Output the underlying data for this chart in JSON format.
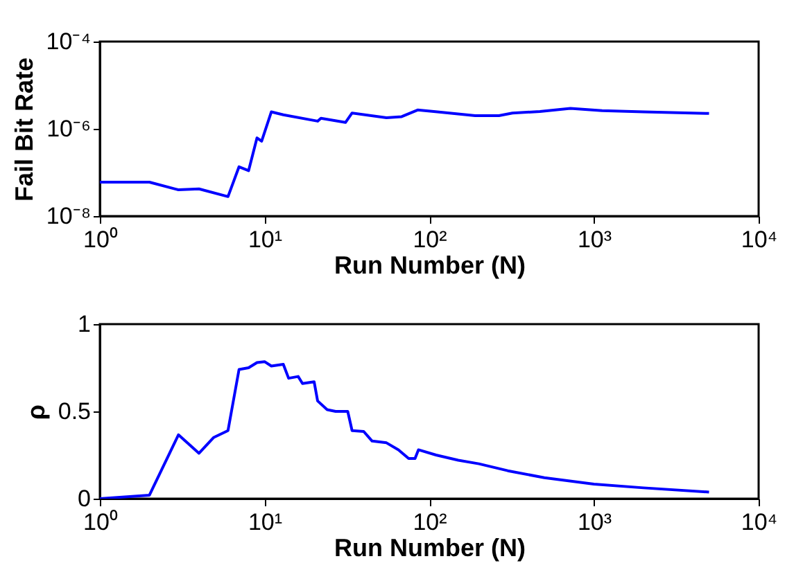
{
  "chart_data": [
    {
      "type": "line",
      "xlabel": "Run Number (N)",
      "ylabel": "Fail Bit Rate",
      "log": "xy",
      "grid": false,
      "marker": "none",
      "line_style": "solid",
      "xlim": [
        1,
        10000
      ],
      "xticks": [
        {
          "value": 1,
          "label": "10⁰"
        },
        {
          "value": 10,
          "label": "10¹"
        },
        {
          "value": 100,
          "label": "10²"
        },
        {
          "value": 1000,
          "label": "10³"
        },
        {
          "value": 10000,
          "label": "10⁴"
        }
      ],
      "ylim": [
        1e-08,
        0.0001
      ],
      "yticks": [
        {
          "value": 1e-08,
          "label": "10⁻⁸"
        },
        {
          "value": 1e-06,
          "label": "10⁻⁶"
        },
        {
          "value": 0.0001,
          "label": "10⁻⁴"
        }
      ],
      "series": [
        {
          "color": "#0000ff",
          "x": [
            1,
            2,
            3,
            4,
            6,
            7,
            8,
            9,
            9.6,
            11,
            13,
            21,
            22,
            31,
            34,
            55,
            68,
            85,
            112,
            190,
            265,
            320,
            470,
            720,
            1120,
            2000,
            5000
          ],
          "values": [
            6e-08,
            6e-08,
            4e-08,
            4.2e-08,
            2.8e-08,
            1.35e-07,
            1.1e-07,
            6.2e-07,
            5.2e-07,
            2.45e-06,
            2.1e-06,
            1.5e-06,
            1.75e-06,
            1.4e-06,
            2.3e-06,
            1.8e-06,
            1.9e-06,
            2.7e-06,
            2.45e-06,
            2e-06,
            2e-06,
            2.3e-06,
            2.5e-06,
            2.95e-06,
            2.6e-06,
            2.45e-06,
            2.25e-06
          ]
        }
      ]
    },
    {
      "type": "line",
      "xlabel": "Run Number (N)",
      "ylabel": "ρ",
      "log": "x",
      "grid": false,
      "marker": "none",
      "line_style": "solid",
      "xlim": [
        1,
        10000
      ],
      "xticks": [
        {
          "value": 1,
          "label": "10⁰"
        },
        {
          "value": 10,
          "label": "10¹"
        },
        {
          "value": 100,
          "label": "10²"
        },
        {
          "value": 1000,
          "label": "10³"
        },
        {
          "value": 10000,
          "label": "10⁴"
        }
      ],
      "ylim": [
        0,
        1
      ],
      "yticks": [
        0,
        0.5,
        1
      ],
      "series": [
        {
          "color": "#0000ff",
          "x": [
            1,
            2,
            3,
            4,
            4.9,
            6,
            7,
            8,
            9,
            10,
            11,
            13,
            14,
            16,
            17,
            20,
            21,
            24,
            27,
            32,
            34,
            40,
            45,
            55,
            65,
            75,
            82,
            86,
            110,
            150,
            200,
            300,
            500,
            1000,
            2000,
            5000
          ],
          "values": [
            0,
            0.02,
            0.366,
            0.26,
            0.35,
            0.39,
            0.74,
            0.75,
            0.78,
            0.785,
            0.76,
            0.77,
            0.69,
            0.7,
            0.66,
            0.67,
            0.56,
            0.51,
            0.5,
            0.5,
            0.39,
            0.385,
            0.33,
            0.32,
            0.28,
            0.23,
            0.23,
            0.28,
            0.25,
            0.22,
            0.2,
            0.16,
            0.12,
            0.083,
            0.062,
            0.038
          ]
        }
      ]
    }
  ]
}
